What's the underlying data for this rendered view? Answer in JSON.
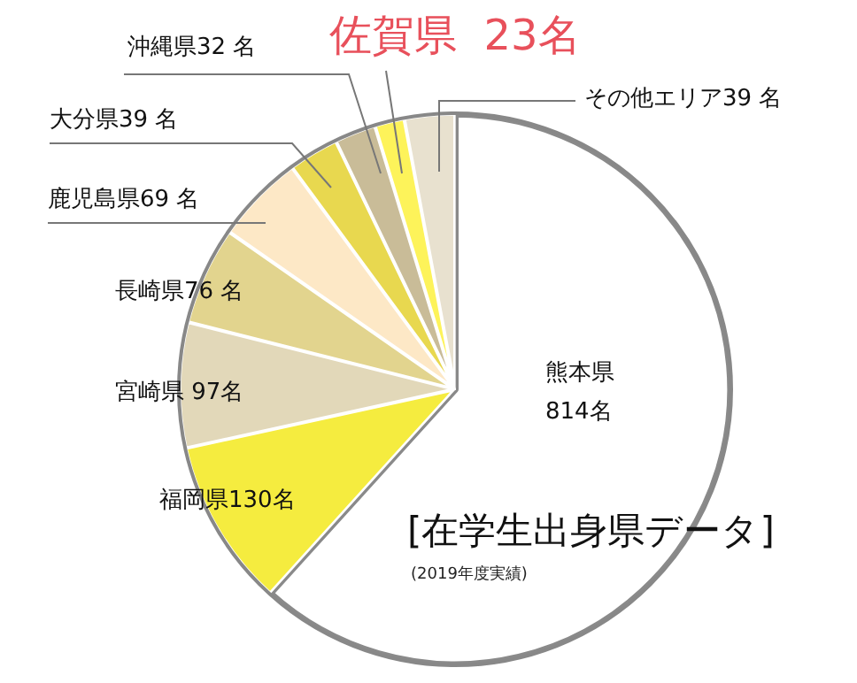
{
  "chart_data": {
    "type": "pie",
    "title": "[在学生出身県データ]",
    "subtitle": "(2019年度実績)",
    "categories": [
      "熊本県",
      "福岡県",
      "宮崎県",
      "長崎県",
      "鹿児島県",
      "大分県",
      "沖縄県",
      "佐賀県",
      "その他エリア"
    ],
    "values": [
      814,
      130,
      97,
      76,
      69,
      39,
      32,
      23,
      39
    ],
    "value_labels": [
      "814名",
      "130名",
      " 97名",
      "76 名",
      "69 名",
      "39 名",
      "32 名",
      "  23名",
      "39 名"
    ],
    "colors": [
      "#ffffff",
      "#f5ec3f",
      "#e2d8b9",
      "#e2d48e",
      "#fde8c6",
      "#e8d84f",
      "#c9bc98",
      "#fdf35a",
      "#e8e1cf"
    ],
    "legend": false
  }
}
